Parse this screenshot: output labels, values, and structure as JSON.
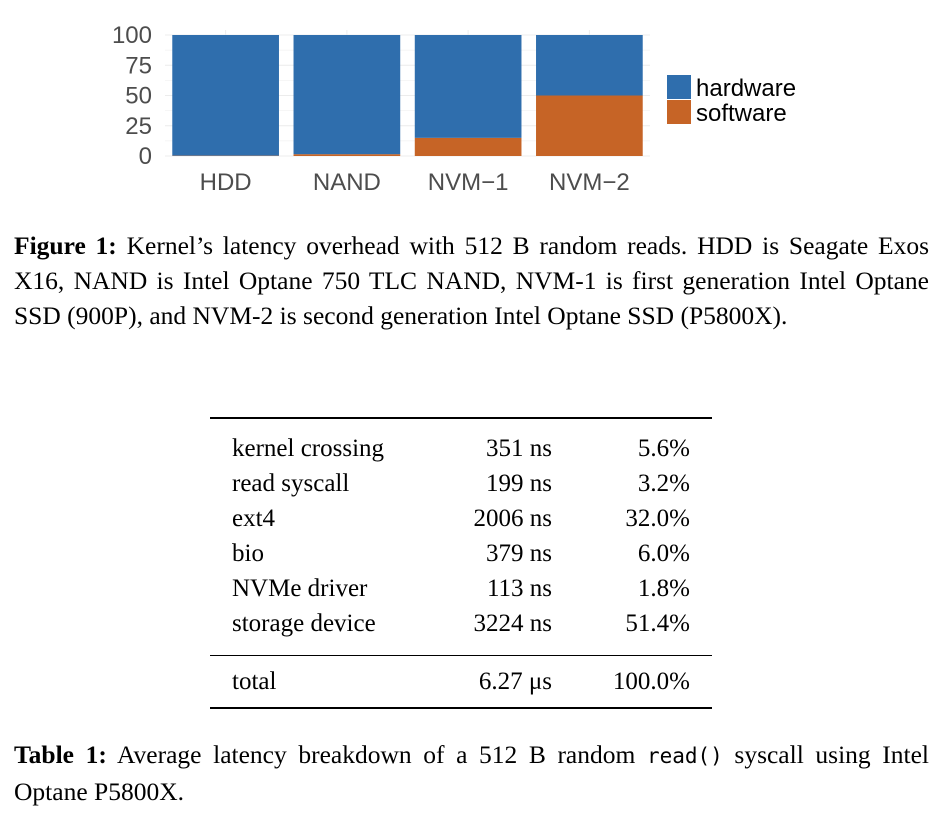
{
  "chart_data": {
    "type": "bar",
    "stacked": true,
    "categories": [
      "HDD",
      "NAND",
      "NVM−1",
      "NVM−2"
    ],
    "series": [
      {
        "name": "hardware",
        "values": [
          99.7,
          98.5,
          85,
          50
        ],
        "color": "#2F6EAD"
      },
      {
        "name": "software",
        "values": [
          0.3,
          1.5,
          15,
          50
        ],
        "color": "#C66426"
      }
    ],
    "yticks": [
      "0",
      "25",
      "50",
      "75",
      "100"
    ],
    "ylim": [
      0,
      100
    ],
    "grid": true,
    "legend": "right"
  },
  "figure_caption": {
    "label": "Figure 1:",
    "text": " Kernel’s latency overhead with 512 B random reads. HDD is Seagate Exos X16, NAND is Intel Optane 750 TLC NAND, NVM-1 is first generation Intel Optane SSD (900P), and NVM-2 is second generation Intel Optane SSD (P5800X)."
  },
  "table": {
    "rows": [
      [
        "kernel crossing",
        "351 ns",
        "5.6%"
      ],
      [
        "read syscall",
        "199 ns",
        "3.2%"
      ],
      [
        "ext4",
        "2006 ns",
        "32.0%"
      ],
      [
        "bio",
        "379 ns",
        "6.0%"
      ],
      [
        "NVMe driver",
        "113 ns",
        "1.8%"
      ],
      [
        "storage device",
        "3224 ns",
        "51.4%"
      ]
    ],
    "total": [
      "total",
      "6.27 μs",
      "100.0%"
    ]
  },
  "table_caption": {
    "label": "Table 1:",
    "text1": " Average latency breakdown of a 512 B random ",
    "code": "read()",
    "text2": " syscall using Intel Optane P5800X."
  }
}
